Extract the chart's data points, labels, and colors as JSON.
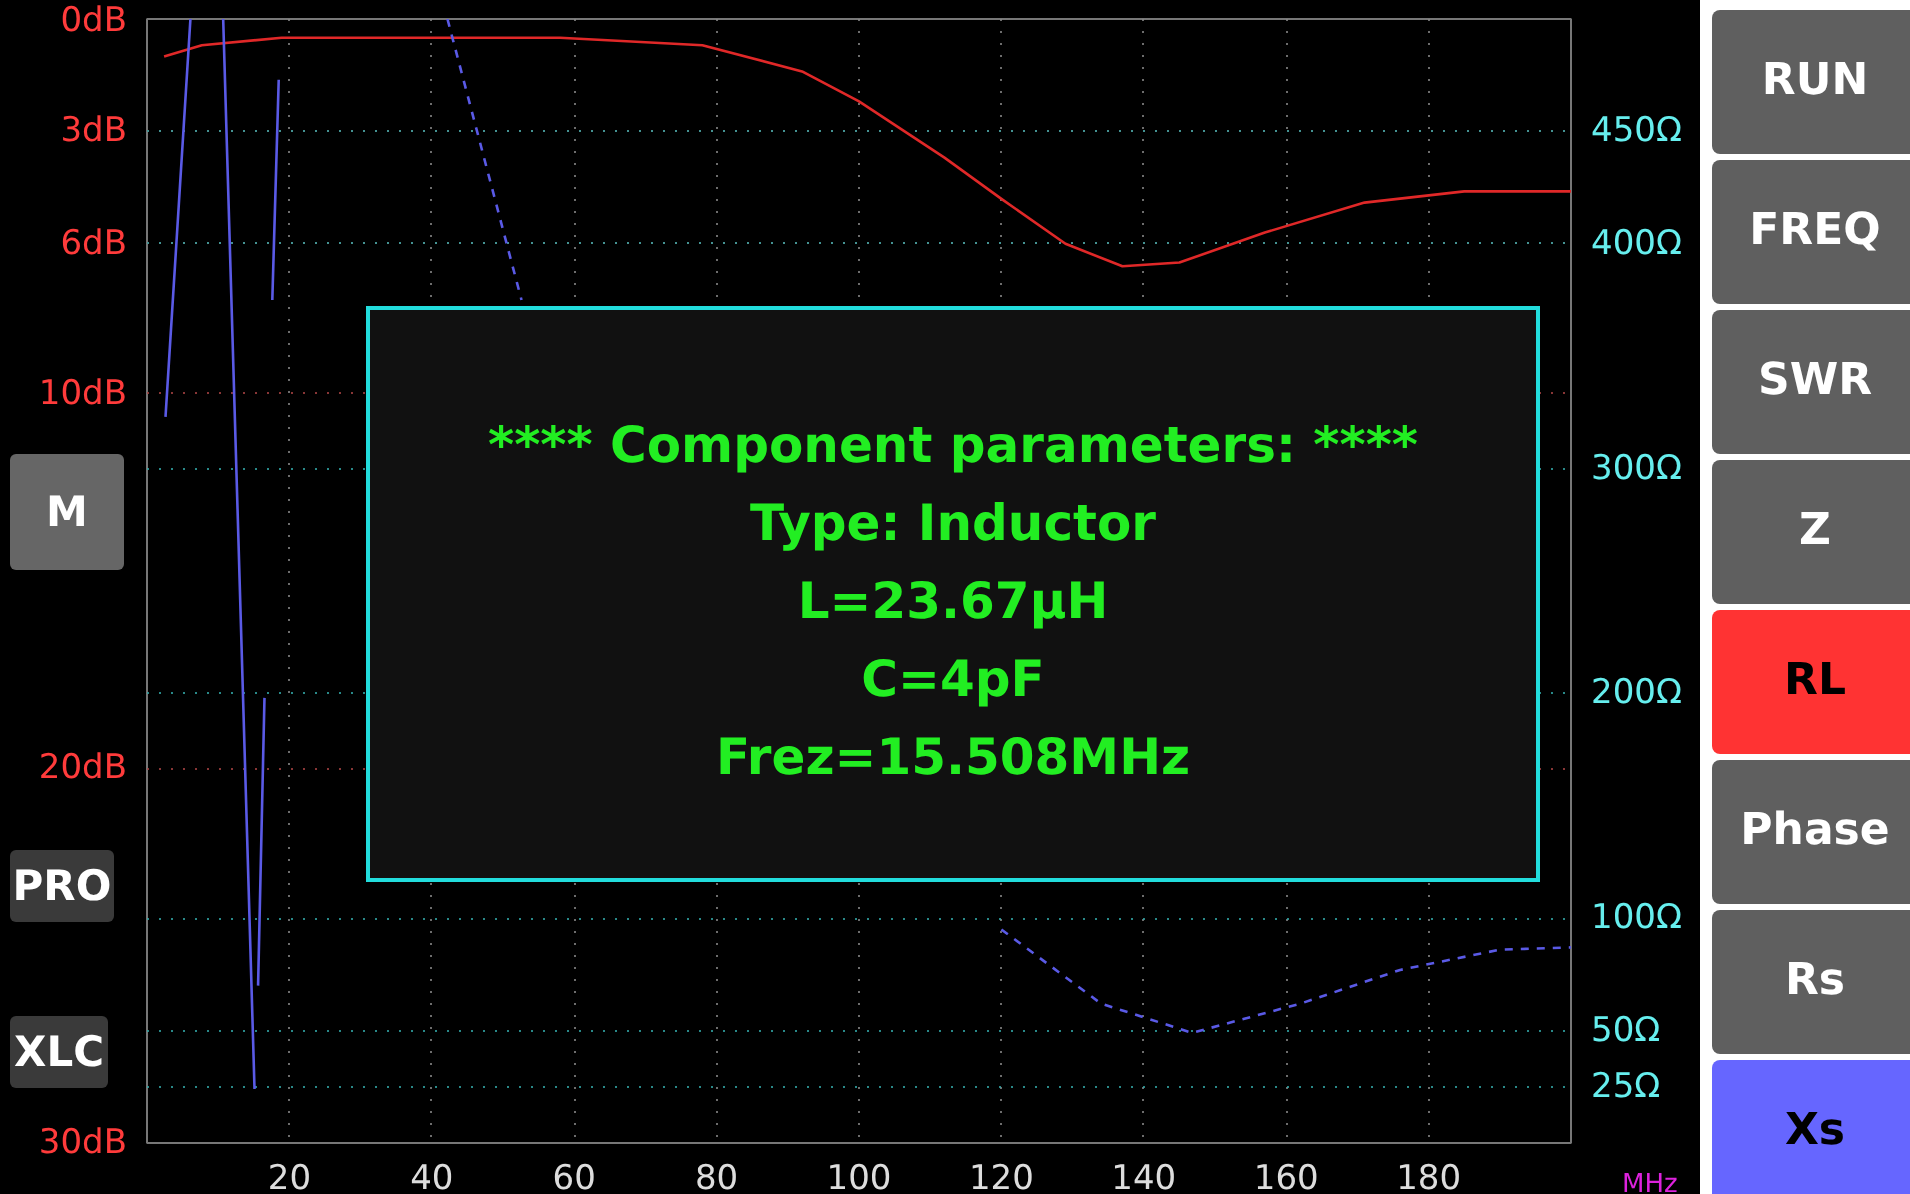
{
  "chart_data": {
    "type": "line",
    "xlabel": "MHz",
    "xlim": [
      0,
      200
    ],
    "xticks": [
      20,
      40,
      60,
      80,
      100,
      120,
      140,
      160,
      180
    ],
    "ylim": [
      30,
      0
    ],
    "yticks": [
      {
        "value": 0,
        "label": "0dB"
      },
      {
        "value": 3,
        "label": "3dB"
      },
      {
        "value": 6,
        "label": "6dB"
      },
      {
        "value": 10,
        "label": "10dB"
      },
      {
        "value": 20,
        "label": "20dB"
      },
      {
        "value": 30,
        "label": "30dB"
      }
    ],
    "y2lim": [
      0,
      500
    ],
    "y2ticks": [
      {
        "value": 25,
        "label": "25Ω"
      },
      {
        "value": 50,
        "label": "50Ω"
      },
      {
        "value": 100,
        "label": "100Ω"
      },
      {
        "value": 200,
        "label": "200Ω"
      },
      {
        "value": 300,
        "label": "300Ω"
      },
      {
        "value": 400,
        "label": "400Ω"
      },
      {
        "value": 450,
        "label": "450Ω"
      }
    ],
    "grid": true,
    "series": [
      {
        "color": "#e02828",
        "line_style": "solid",
        "x": [
          2.4,
          7.7,
          18.9,
          35.8,
          58,
          78,
          92,
          100,
          112,
          120,
          129,
          137,
          145,
          157,
          171,
          185,
          200
        ],
        "values": [
          1.0,
          0.7,
          0.5,
          0.5,
          0.5,
          0.7,
          1.4,
          2.2,
          3.7,
          4.8,
          6.0,
          6.6,
          6.5,
          5.7,
          4.9,
          4.6,
          4.6
        ]
      },
      {
        "color": "#5a5ae6",
        "line_style": "solid",
        "axis": "y2",
        "x": [
          2.6,
          6.1,
          8,
          10.7,
          15.1,
          15.3,
          15.6,
          16.5,
          17,
          17.6,
          18.5
        ],
        "values": [
          323,
          500,
          null,
          500,
          24,
          null,
          70,
          198,
          null,
          375,
          473
        ]
      },
      {
        "color": "#5a5ae6",
        "line_style": "dashed",
        "axis": "y2",
        "x": [
          42.2,
          52.6,
          63.9,
          77.9,
          91.9,
          106,
          120,
          134,
          146.8,
          162,
          176,
          190,
          200
        ],
        "values": [
          500,
          375,
          null,
          null,
          null,
          null,
          95,
          62,
          49,
          62,
          77,
          86,
          87
        ]
      }
    ],
    "annotations": [
      "**** Component parameters: ****",
      "Type: Inductor",
      "L=23.67μH",
      "C=4pF",
      "Frez=15.508MHz",
      "M",
      "PRO",
      "XLC",
      "RUN",
      "FREQ",
      "SWR",
      "Z",
      "RL",
      "Phase",
      "Rs",
      "Xs"
    ]
  }
}
